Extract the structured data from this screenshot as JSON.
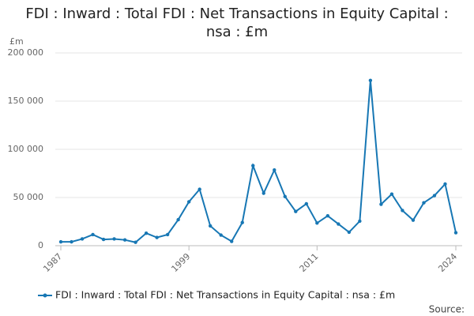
{
  "chart_data": {
    "type": "line",
    "title": "FDI : Inward : Total FDI : Net Transactions in Equity Capital : nsa : £m",
    "y_unit": "£m",
    "source_label": "Source:",
    "x": [
      1987,
      1988,
      1989,
      1990,
      1991,
      1992,
      1993,
      1994,
      1995,
      1996,
      1997,
      1998,
      1999,
      2000,
      2001,
      2002,
      2003,
      2004,
      2005,
      2006,
      2007,
      2008,
      2009,
      2010,
      2011,
      2012,
      2013,
      2014,
      2015,
      2016,
      2017,
      2018,
      2019,
      2020,
      2021,
      2022,
      2023,
      2024
    ],
    "series": [
      {
        "name": "FDI : Inward : Total FDI : Net Transactions in Equity Capital : nsa : £m",
        "color": "#1777b4",
        "values": [
          4000,
          4000,
          7000,
          11500,
          6500,
          7000,
          6000,
          3500,
          13000,
          8500,
          11500,
          27000,
          45500,
          58500,
          20500,
          11000,
          4500,
          24000,
          83000,
          54500,
          78500,
          51000,
          35500,
          43500,
          23500,
          31000,
          22500,
          14000,
          25500,
          171500,
          43000,
          53500,
          36500,
          26500,
          44500,
          52000,
          64000,
          13500
        ]
      }
    ],
    "xlim": [
      1987,
      2024
    ],
    "xticks": [
      1987,
      1999,
      2011,
      2024
    ],
    "ylim": [
      0,
      200000
    ],
    "yticks": [
      0,
      {
        "value": 50000,
        "label": "50 000"
      },
      {
        "value": 100000,
        "label": "100 000"
      },
      {
        "value": 150000,
        "label": "150 000"
      },
      {
        "value": 200000,
        "label": "200 000"
      }
    ],
    "grid": true
  }
}
